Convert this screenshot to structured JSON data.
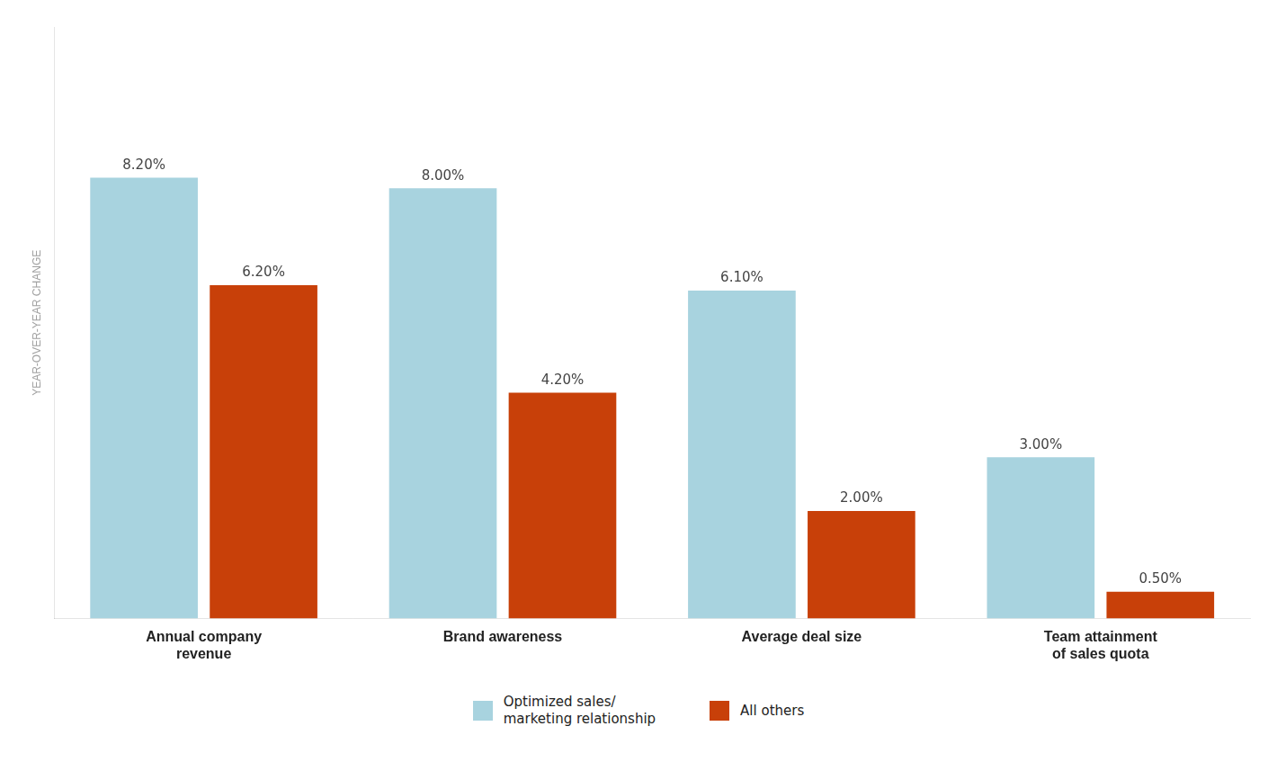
{
  "chart_data": {
    "type": "bar",
    "categories": [
      "Annual company\nrevenue",
      "Brand awareness",
      "Average deal size",
      "Team attainment\nof sales quota"
    ],
    "series": [
      {
        "name": "Optimized sales/\nmarketing relationship",
        "color": "#a8d3df",
        "values": [
          8.2,
          8.0,
          6.1,
          3.0
        ],
        "value_labels": [
          "8.20%",
          "8.00%",
          "6.10%",
          "3.00%"
        ]
      },
      {
        "name": "All others",
        "color": "#c84009",
        "values": [
          6.2,
          4.2,
          2.0,
          0.5
        ],
        "value_labels": [
          "6.20%",
          "4.20%",
          "2.00%",
          "0.50%"
        ]
      }
    ],
    "ylabel": "YEAR-OVER-YEAR CHANGE",
    "ylim": [
      0,
      11.0
    ],
    "yticks": [],
    "grid": false,
    "legend": "bottom",
    "data_labels": true,
    "tick_labels": "x"
  }
}
